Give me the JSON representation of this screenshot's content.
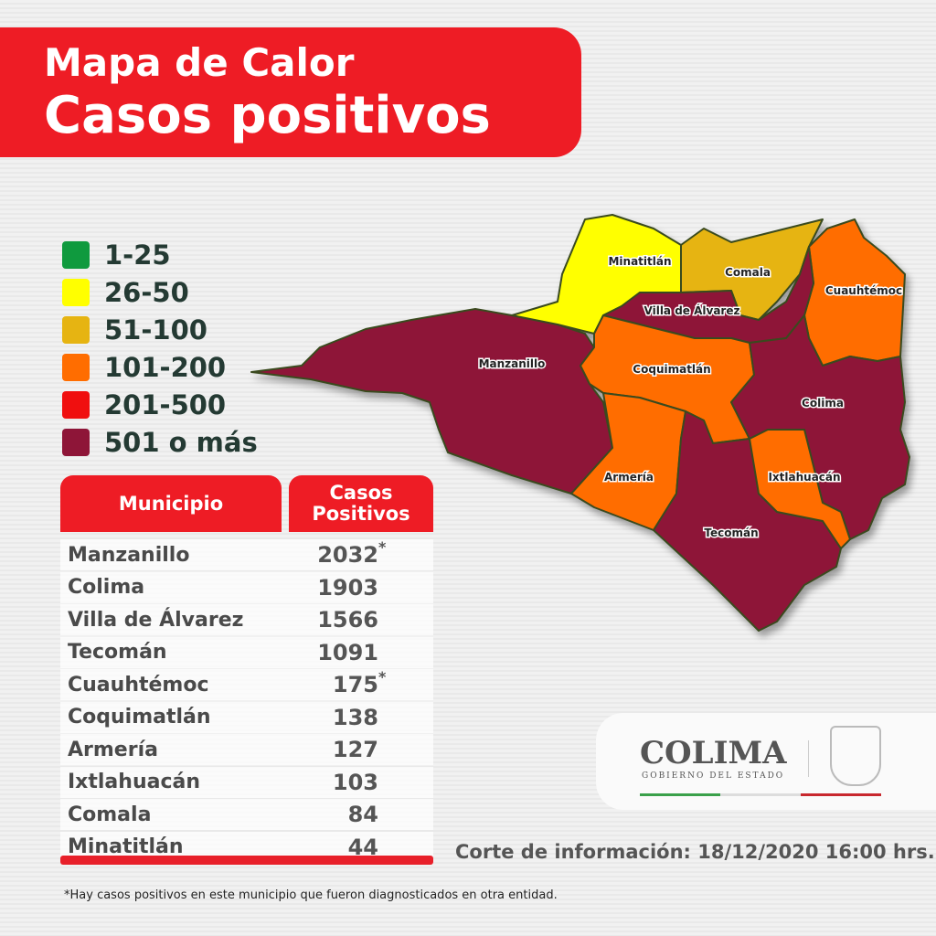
{
  "title": {
    "line1": "Mapa de Calor",
    "line2": "Casos positivos"
  },
  "legend": [
    {
      "label": "1-25",
      "color": "#0f9a3e"
    },
    {
      "label": "26-50",
      "color": "#ffff00"
    },
    {
      "label": "51-100",
      "color": "#e6b412"
    },
    {
      "label": "101-200",
      "color": "#ff6d00"
    },
    {
      "label": "201-500",
      "color": "#f00f0f"
    },
    {
      "label": "501 o más",
      "color": "#8e1538"
    }
  ],
  "table": {
    "col1": "Municipio",
    "col2": "Casos Positivos",
    "rows": [
      {
        "municipio": "Manzanillo",
        "casos": "2032",
        "note": "*"
      },
      {
        "municipio": "Colima",
        "casos": "1903"
      },
      {
        "municipio": "Villa de Álvarez",
        "casos": "1566"
      },
      {
        "municipio": "Tecomán",
        "casos": "1091"
      },
      {
        "municipio": "Cuauhtémoc",
        "casos": "175",
        "note": "*"
      },
      {
        "municipio": "Coquimatlán",
        "casos": "138"
      },
      {
        "municipio": "Armería",
        "casos": "127"
      },
      {
        "municipio": "Ixtlahuacán",
        "casos": "103"
      },
      {
        "municipio": "Comala",
        "casos": "84"
      },
      {
        "municipio": "Minatitlán",
        "casos": "44"
      }
    ]
  },
  "map": {
    "regions": [
      {
        "name": "Manzanillo",
        "color": "#8e1538"
      },
      {
        "name": "Minatitlán",
        "color": "#ffff00"
      },
      {
        "name": "Comala",
        "color": "#e6b412"
      },
      {
        "name": "Cuauhtémoc",
        "color": "#ff6d00"
      },
      {
        "name": "Villa de Álvarez",
        "color": "#8e1538"
      },
      {
        "name": "Coquimatlán",
        "color": "#ff6d00"
      },
      {
        "name": "Colima",
        "color": "#8e1538"
      },
      {
        "name": "Armería",
        "color": "#ff6d00"
      },
      {
        "name": "Tecomán",
        "color": "#8e1538"
      },
      {
        "name": "Ixtlahuacán",
        "color": "#ff6d00"
      }
    ]
  },
  "logo": {
    "name": "COLIMA",
    "subtitle": "GOBIERNO DEL ESTADO"
  },
  "corte": "Corte de información: 18/12/2020 16:00 hrs.",
  "footnote": "*Hay casos positivos en este municipio que fueron diagnosticados en otra entidad."
}
